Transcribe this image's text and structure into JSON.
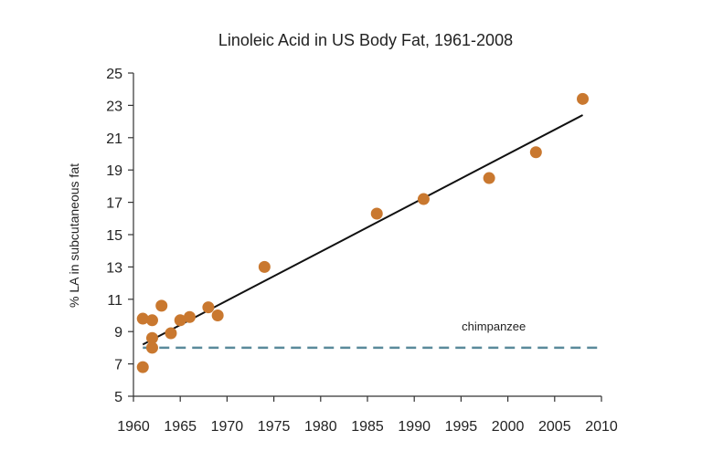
{
  "chart_data": {
    "type": "scatter",
    "title": "Linoleic Acid in US Body Fat, 1961-2008",
    "xlabel": "",
    "ylabel": "% LA in subcutaneous fat",
    "xlim": [
      1960,
      2010
    ],
    "ylim": [
      5,
      25
    ],
    "xticks": [
      1960,
      1965,
      1970,
      1975,
      1980,
      1985,
      1990,
      1995,
      2000,
      2005,
      2010
    ],
    "yticks": [
      5,
      7,
      9,
      11,
      13,
      15,
      17,
      19,
      21,
      23,
      25
    ],
    "grid": false,
    "series": [
      {
        "color": "#c9782f",
        "points": [
          {
            "x": 1961,
            "y": 6.8
          },
          {
            "x": 1961,
            "y": 9.8
          },
          {
            "x": 1962,
            "y": 9.7
          },
          {
            "x": 1962,
            "y": 8.6
          },
          {
            "x": 1962,
            "y": 8.0
          },
          {
            "x": 1963,
            "y": 10.6
          },
          {
            "x": 1964,
            "y": 8.9
          },
          {
            "x": 1965,
            "y": 9.7
          },
          {
            "x": 1966,
            "y": 9.9
          },
          {
            "x": 1968,
            "y": 10.5
          },
          {
            "x": 1969,
            "y": 10.0
          },
          {
            "x": 1974,
            "y": 13.0
          },
          {
            "x": 1986,
            "y": 16.3
          },
          {
            "x": 1991,
            "y": 17.2
          },
          {
            "x": 1998,
            "y": 18.5
          },
          {
            "x": 2003,
            "y": 20.1
          },
          {
            "x": 2008,
            "y": 23.4
          }
        ]
      }
    ],
    "trendline": {
      "x": [
        1961,
        2008
      ],
      "y": [
        8.2,
        22.4
      ],
      "color": "#111111"
    },
    "reference_line": {
      "y": 8.0,
      "label": "chimpanzee",
      "color": "#5a8a9a",
      "style": "dashed"
    }
  }
}
